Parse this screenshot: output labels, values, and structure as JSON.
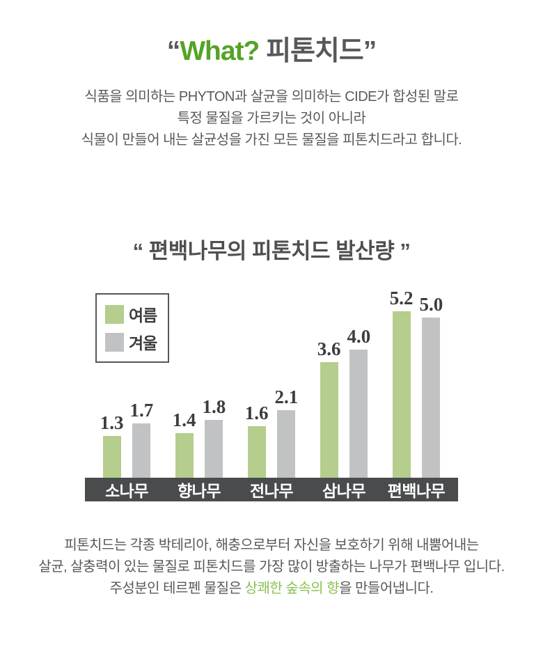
{
  "header": {
    "quote_open": "“",
    "highlight": "What?",
    "title_rest": " 피톤치드",
    "quote_close": "”"
  },
  "intro": {
    "lines": [
      "식품을 의미하는 PHYTON과 살균을 의미하는 CIDE가 합성된 말로",
      "특정 물질을 가르키는 것이 아니라",
      "식물이 만들어 내는 살균성을 가진 모든 물질을 피톤치드라고 합니다."
    ]
  },
  "chart_section": {
    "title": "“ 편백나무의 피톤치드 발산량 ”"
  },
  "chart_data": {
    "type": "bar",
    "title": "편백나무의 피톤치드 발산량",
    "categories": [
      "소나무",
      "향나무",
      "전나무",
      "삼나무",
      "편백나무"
    ],
    "series": [
      {
        "name": "여름",
        "color": "#b5cd8d",
        "values": [
          1.3,
          1.4,
          1.6,
          3.6,
          5.2
        ]
      },
      {
        "name": "겨울",
        "color": "#c1c2c4",
        "values": [
          1.7,
          1.8,
          2.1,
          4.0,
          5.0
        ]
      }
    ],
    "value_labels": true,
    "grid": false,
    "legend_position": "top-left",
    "xlabel": "",
    "ylabel": "",
    "ylim": [
      0,
      5.5
    ],
    "axis_band_color": "#4a4b4d",
    "axis_label_color": "#ffffff"
  },
  "outro": {
    "line1": "피톤치드는 각종 박테리아, 해충으로부터 자신을 보호하기 위해 내뿜어내는",
    "line2": "살균, 살충력이 있는 물질로 피톤치드를 가장 많이 방출하는 나무가 편백나무 입니다.",
    "line3_prefix": "주성분인 테르펜 물질은 ",
    "line3_highlight": "상쾌한 숲속의 향",
    "line3_suffix": "을 만들어냅니다."
  },
  "colors": {
    "title_accent_green": "#55a326",
    "text_gray": "#595959",
    "highlight_green": "#8cc153",
    "bar_green": "#b5cd8d",
    "bar_gray": "#c1c2c4",
    "axis_band": "#4a4b4d"
  }
}
